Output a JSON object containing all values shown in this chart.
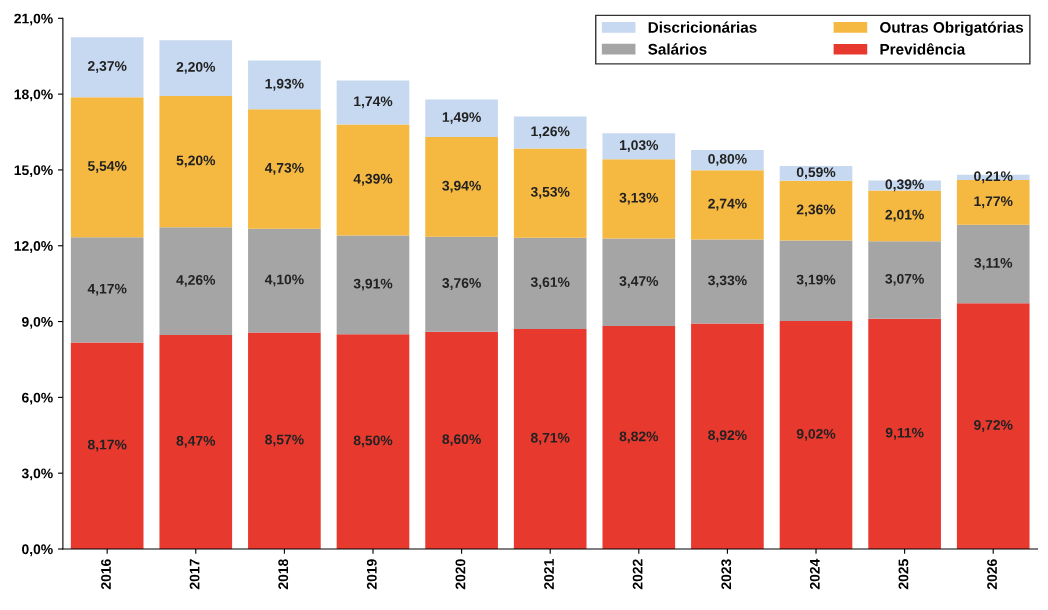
{
  "chart_data": {
    "type": "bar",
    "stacked": true,
    "categories": [
      "2016",
      "2017",
      "2018",
      "2019",
      "2020",
      "2021",
      "2022",
      "2023",
      "2024",
      "2025",
      "2026"
    ],
    "series": [
      {
        "name": "Previdência",
        "color": "#e8392f",
        "values": [
          8.17,
          8.47,
          8.57,
          8.5,
          8.6,
          8.71,
          8.82,
          8.92,
          9.02,
          9.11,
          9.72
        ],
        "value_labels": [
          "8,17%",
          "8,47%",
          "8,57%",
          "8,50%",
          "8,60%",
          "8,71%",
          "8,82%",
          "8,92%",
          "9,02%",
          "9,11%",
          "9,72%"
        ]
      },
      {
        "name": "Salários",
        "color": "#a5a5a5",
        "values": [
          4.17,
          4.26,
          4.1,
          3.91,
          3.76,
          3.61,
          3.47,
          3.33,
          3.19,
          3.07,
          3.11
        ],
        "value_labels": [
          "4,17%",
          "4,26%",
          "4,10%",
          "3,91%",
          "3,76%",
          "3,61%",
          "3,47%",
          "3,33%",
          "3,19%",
          "3,07%",
          "3,11%"
        ]
      },
      {
        "name": "Outras Obrigatórias",
        "color": "#f5b840",
        "values": [
          5.54,
          5.2,
          4.73,
          4.39,
          3.94,
          3.53,
          3.13,
          2.74,
          2.36,
          2.01,
          1.77
        ],
        "value_labels": [
          "5,54%",
          "5,20%",
          "4,73%",
          "4,39%",
          "3,94%",
          "3,53%",
          "3,13%",
          "2,74%",
          "2,36%",
          "2,01%",
          "1,77%"
        ]
      },
      {
        "name": "Discricionárias",
        "color": "#c6d9f0",
        "values": [
          2.37,
          2.2,
          1.93,
          1.74,
          1.49,
          1.26,
          1.03,
          0.8,
          0.59,
          0.39,
          0.21
        ],
        "value_labels": [
          "2,37%",
          "2,20%",
          "1,93%",
          "1,74%",
          "1,49%",
          "1,26%",
          "1,03%",
          "0,80%",
          "0,59%",
          "0,39%",
          "0,21%"
        ]
      }
    ],
    "ylim": [
      0,
      21
    ],
    "yticks": [
      {
        "value": 0,
        "label": "0,0%"
      },
      {
        "value": 3,
        "label": "3,0%"
      },
      {
        "value": 6,
        "label": "6,0%"
      },
      {
        "value": 9,
        "label": "9,0%"
      },
      {
        "value": 12,
        "label": "12,0%"
      },
      {
        "value": 15,
        "label": "15,0%"
      },
      {
        "value": 18,
        "label": "18,0%"
      },
      {
        "value": 21,
        "label": "21,0%"
      }
    ],
    "legend": "top right"
  }
}
